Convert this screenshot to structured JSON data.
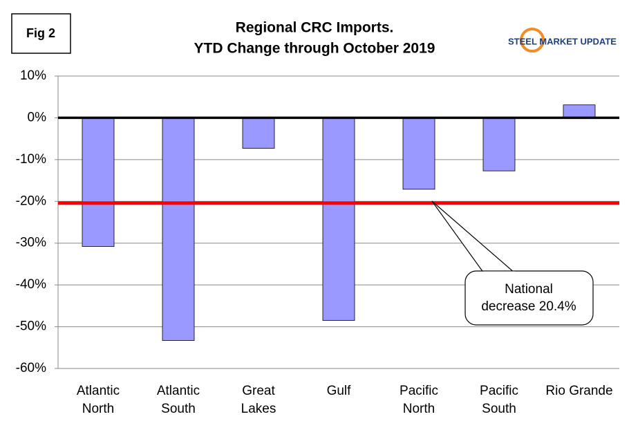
{
  "chart_data": {
    "type": "bar",
    "title": "Regional CRC Imports.",
    "subtitle": "YTD Change through October 2019",
    "figure_label": "Fig 2",
    "logo": "STEEL MARKET UPDATE",
    "categories": [
      "Atlantic North",
      "Atlantic South",
      "Great Lakes",
      "Gulf",
      "Pacific North",
      "Pacific South",
      "Rio Grande"
    ],
    "values": [
      -30.8,
      -53.3,
      -7.3,
      -48.5,
      -17.1,
      -12.7,
      3.1
    ],
    "color": "#9999ff",
    "ylim": [
      -60,
      10
    ],
    "yticks": [
      {
        "value": -60,
        "label": "-60%"
      },
      {
        "value": -50,
        "label": "-50%"
      },
      {
        "value": -40,
        "label": "-40%"
      },
      {
        "value": -30,
        "label": "-30%"
      },
      {
        "value": -20,
        "label": "-20%"
      },
      {
        "value": -10,
        "label": "-10%"
      },
      {
        "value": 0,
        "label": "0%"
      },
      {
        "value": 10,
        "label": "10%"
      }
    ],
    "grid": true,
    "reference_line": {
      "value": -20.4,
      "color": "#ff0000"
    },
    "annotation": [
      "National",
      "decrease 20.4%"
    ]
  }
}
